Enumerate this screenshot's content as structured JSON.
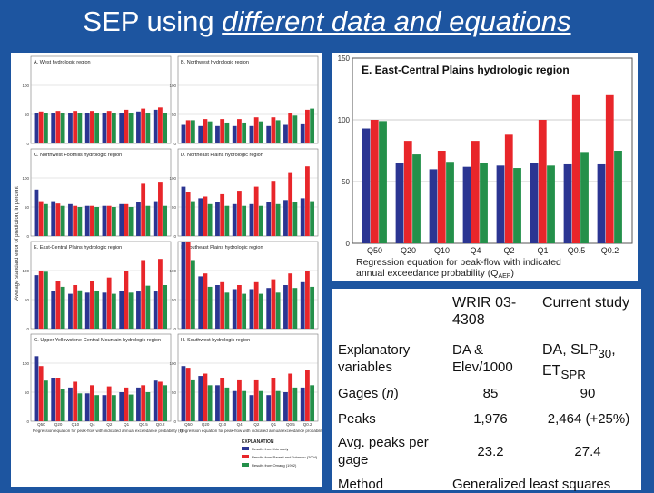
{
  "title": {
    "prefix": "SEP using ",
    "emphasis": "different data and equations"
  },
  "chart_data": [
    {
      "type": "bar",
      "title": "E. East-Central Plains hydrologic region",
      "xlabel": "Regression equation for peak-flow with indicated annual exceedance probability (Q",
      "xlabel_sub": "AEP",
      "xlabel_end": ")",
      "categories": [
        "Q50",
        "Q20",
        "Q10",
        "Q4",
        "Q2",
        "Q1",
        "Q0.5",
        "Q0.2"
      ],
      "ylim": [
        0,
        150
      ],
      "yticks": [
        "0",
        "50",
        "100",
        "150"
      ],
      "series": [
        {
          "color": "#2b3592",
          "values": [
            93,
            65,
            60,
            62,
            63,
            65,
            64,
            64
          ]
        },
        {
          "color": "#e8262a",
          "values": [
            100,
            83,
            75,
            83,
            88,
            100,
            120,
            120
          ]
        },
        {
          "color": "#24904a",
          "values": [
            99,
            72,
            66,
            65,
            61,
            63,
            74,
            75
          ]
        }
      ]
    },
    {
      "type": "bar",
      "layout": "small-multiples",
      "ylabel": "Average standard error of prediction, in percent",
      "categories": [
        "Q50",
        "Q20",
        "Q10",
        "Q4",
        "Q2",
        "Q1",
        "Q0.5",
        "Q0.2"
      ],
      "ylim": [
        0,
        150
      ],
      "yticks": [
        "0",
        "50",
        "100"
      ],
      "xlabel_left": "Regression equation for peak-flow with indicated annual exceedance probability (Q",
      "xlabel_right": "Regression equation for peak-flow with indicated annual exceedance probability (Q",
      "legend": {
        "title": "EXPLANATION",
        "items": [
          {
            "label": "Results from this study",
            "color": "#2b3592"
          },
          {
            "label": "Results from Parrett and Johnson (2004)",
            "color": "#e8262a"
          },
          {
            "label": "Results from Omang (1992)",
            "color": "#24904a"
          }
        ]
      },
      "panels": [
        {
          "label": "A. West hydrologic region",
          "series": [
            [
              52,
              52,
              52,
              52,
              52,
              52,
              55,
              58
            ],
            [
              55,
              56,
              56,
              56,
              56,
              58,
              60,
              62
            ],
            [
              52,
              52,
              52,
              52,
              52,
              52,
              52,
              52
            ]
          ]
        },
        {
          "label": "B. Northwest hydrologic region",
          "series": [
            [
              32,
              30,
              30,
              30,
              30,
              30,
              32,
              33
            ],
            [
              40,
              42,
              42,
              42,
              45,
              45,
              52,
              58
            ],
            [
              40,
              38,
              36,
              36,
              38,
              40,
              48,
              60
            ]
          ]
        },
        {
          "label": "C. Northwest Foothills hydrologic region",
          "series": [
            [
              80,
              60,
              55,
              52,
              52,
              55,
              58,
              60
            ],
            [
              60,
              56,
              52,
              52,
              52,
              55,
              90,
              92
            ],
            [
              55,
              52,
              50,
              50,
              50,
              50,
              52,
              52
            ]
          ]
        },
        {
          "label": "D. Northeast Plains hydrologic region",
          "series": [
            [
              85,
              65,
              58,
              55,
              55,
              58,
              62,
              65
            ],
            [
              75,
              68,
              72,
              78,
              85,
              95,
              110,
              120
            ],
            [
              60,
              55,
              52,
              52,
              52,
              55,
              58,
              60
            ]
          ]
        },
        {
          "label": "E. East-Central Plains hydrologic region",
          "series": [
            [
              92,
              65,
              60,
              62,
              62,
              65,
              64,
              64
            ],
            [
              100,
              82,
              75,
              82,
              88,
              100,
              118,
              120
            ],
            [
              98,
              72,
              66,
              65,
              60,
              62,
              74,
              75
            ]
          ]
        },
        {
          "label": "F. Southeast Plains hydrologic region",
          "series": [
            [
              150,
              90,
              75,
              68,
              68,
              70,
              75,
              80
            ],
            [
              150,
              95,
              80,
              75,
              80,
              85,
              95,
              100
            ],
            [
              118,
              72,
              62,
              60,
              60,
              62,
              70,
              72
            ]
          ]
        },
        {
          "label": "G. Upper Yellowstone-Central Mountain hydrologic region",
          "series": [
            [
              112,
              75,
              58,
              48,
              45,
              50,
              58,
              70
            ],
            [
              95,
              75,
              68,
              62,
              60,
              58,
              62,
              68
            ],
            [
              70,
              55,
              48,
              45,
              45,
              46,
              50,
              62
            ]
          ]
        },
        {
          "label": "H. Southwest hydrologic region",
          "series": [
            [
              95,
              78,
              62,
              52,
              45,
              45,
              50,
              58
            ],
            [
              92,
              82,
              75,
              72,
              72,
              75,
              82,
              88
            ],
            [
              72,
              62,
              58,
              52,
              52,
              52,
              58,
              62
            ]
          ]
        }
      ]
    }
  ],
  "table": {
    "col1_header": "WRIR 03-4308",
    "col2_header": "Current study",
    "rows": [
      {
        "label": "Explanatory variables",
        "v1": "DA & Elev/1000",
        "v2_pre": "DA, SLP",
        "v2_sub1": "30",
        "v2_mid": ", ET",
        "v2_sub2": "SPR"
      },
      {
        "label": "Gages (",
        "label_italic": "n",
        "label_end": ")",
        "v1": "85",
        "v2": "90"
      },
      {
        "label": "Peaks",
        "v1": "1,976",
        "v2": "2,464 (+25%)"
      },
      {
        "label": "Avg. peaks per gage",
        "v1": "23.2",
        "v2": "27.4"
      },
      {
        "label": "Method",
        "v_span": "Generalized least squares"
      }
    ]
  }
}
